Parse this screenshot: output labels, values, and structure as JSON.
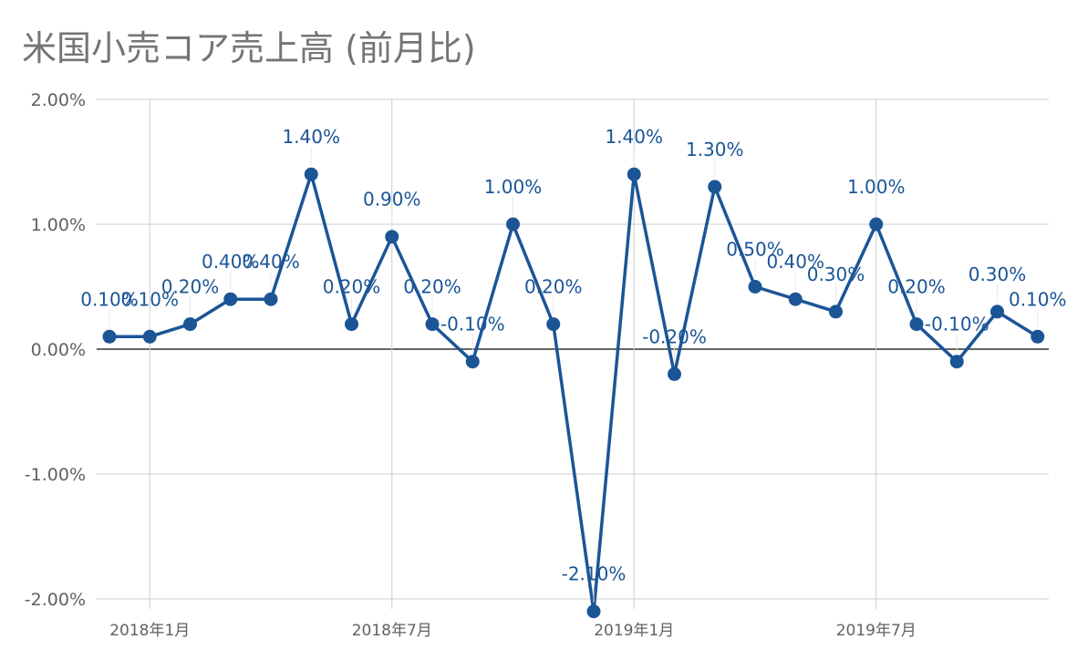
{
  "title": "米国小売コア売上高 (前月比)",
  "colors": {
    "series": "#1b5596",
    "grid": "#cccccc",
    "zero_line": "#333333",
    "text": "#616161",
    "title": "#757575"
  },
  "chart_data": {
    "type": "line",
    "title": "米国小売コア売上高 (前月比)",
    "x": [
      "2017-12",
      "2018-01",
      "2018-02",
      "2018-03",
      "2018-04",
      "2018-05",
      "2018-06",
      "2018-07",
      "2018-08",
      "2018-09",
      "2018-10",
      "2018-11",
      "2018-12",
      "2019-01",
      "2019-02",
      "2019-03",
      "2019-04",
      "2019-05",
      "2019-06",
      "2019-07",
      "2019-08",
      "2019-09",
      "2019-10",
      "2019-11"
    ],
    "x_ticks": [
      {
        "x": "2018-01",
        "label": "2018年1月"
      },
      {
        "x": "2018-07",
        "label": "2018年7月"
      },
      {
        "x": "2019-01",
        "label": "2019年1月"
      },
      {
        "x": "2019-07",
        "label": "2019年7月"
      }
    ],
    "series": [
      {
        "values": [
          0.1,
          0.1,
          0.2,
          0.4,
          0.4,
          1.4,
          0.2,
          0.9,
          0.2,
          -0.1,
          1.0,
          0.2,
          -2.1,
          1.4,
          -0.2,
          1.3,
          0.5,
          0.4,
          0.3,
          1.0,
          0.2,
          -0.1,
          0.3,
          0.1
        ],
        "labels": [
          "0.10%",
          "0.10%",
          "0.20%",
          "0.40%",
          "0.40%",
          "1.40%",
          "0.20%",
          "0.90%",
          "0.20%",
          "-0.10%",
          "1.00%",
          "0.20%",
          "-2.10%",
          "1.40%",
          "-0.20%",
          "1.30%",
          "0.50%",
          "0.40%",
          "0.30%",
          "1.00%",
          "0.20%",
          "-0.10%",
          "0.30%",
          "0.10%"
        ]
      }
    ],
    "y_ticks": [
      2,
      1,
      0,
      -1,
      -2
    ],
    "y_tick_labels": [
      "2.00%",
      "1.00%",
      "0.00%",
      "-1.00%",
      "-2.00%"
    ],
    "ylim": [
      -2,
      2
    ],
    "grid": true,
    "legend": "none"
  }
}
